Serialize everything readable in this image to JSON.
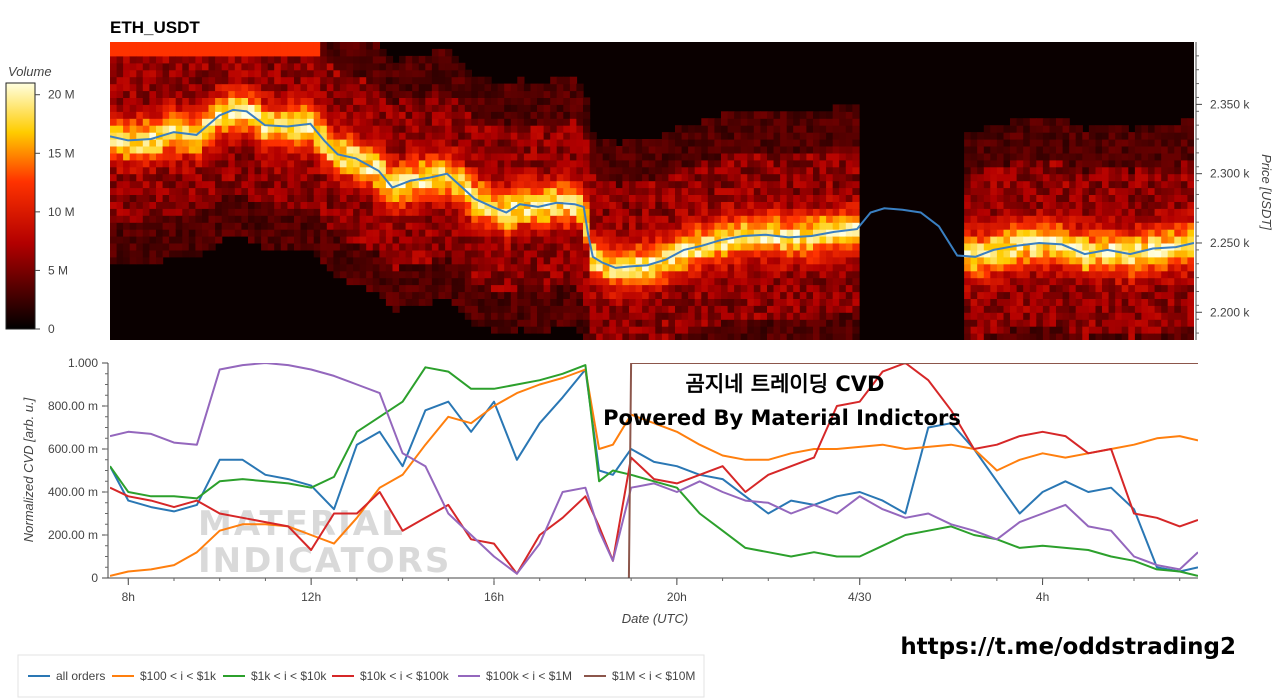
{
  "chart_data": [
    {
      "type": "heatmap",
      "title": "ETH_USDT",
      "ylabel": "Price [USDT]",
      "ylim": [
        2180,
        2395
      ],
      "yticks": [
        {
          "value": 2200,
          "label": "2.200 k"
        },
        {
          "value": 2250,
          "label": "2.250 k"
        },
        {
          "value": 2300,
          "label": "2.300 k"
        },
        {
          "value": 2350,
          "label": "2.350 k"
        }
      ],
      "colorbar": {
        "label": "Volume",
        "range": [
          0,
          21000000
        ],
        "ticks": [
          {
            "value": 0,
            "label": "0"
          },
          {
            "value": 5000000,
            "label": "5 M"
          },
          {
            "value": 10000000,
            "label": "10 M"
          },
          {
            "value": 15000000,
            "label": "15 M"
          },
          {
            "value": 20000000,
            "label": "20 M"
          }
        ]
      },
      "price_line": {
        "color": "#3a7fc1",
        "x": [
          7.6,
          8.0,
          8.5,
          9.0,
          9.5,
          10.0,
          10.3,
          10.6,
          11.0,
          11.5,
          12.0,
          12.3,
          12.6,
          13.0,
          13.5,
          13.8,
          14.2,
          14.6,
          15.0,
          15.3,
          15.6,
          16.0,
          16.3,
          16.6,
          17.0,
          17.4,
          17.8,
          18.0,
          18.1,
          18.2,
          18.4,
          18.7,
          19.0,
          19.4,
          19.8,
          20.2,
          20.6,
          21.0,
          21.5,
          22.0,
          22.5,
          23.0,
          23.5,
          24.0,
          24.3,
          24.6,
          25.0,
          25.4,
          25.8,
          26.2,
          26.6,
          27.0,
          27.5,
          28.0,
          28.5,
          29.0,
          29.5,
          30.0,
          30.5,
          31.0,
          31.4
        ],
        "y": [
          2327,
          2324,
          2325,
          2330,
          2328,
          2342,
          2346,
          2345,
          2335,
          2334,
          2336,
          2324,
          2314,
          2311,
          2302,
          2290,
          2295,
          2297,
          2300,
          2291,
          2282,
          2276,
          2272,
          2278,
          2276,
          2279,
          2278,
          2276,
          2256,
          2240,
          2236,
          2232,
          2233,
          2234,
          2238,
          2245,
          2248,
          2252,
          2255,
          2256,
          2254,
          2255,
          2258,
          2260,
          2272,
          2275,
          2274,
          2272,
          2262,
          2241,
          2240,
          2245,
          2248,
          2250,
          2249,
          2242,
          2245,
          2242,
          2246,
          2247,
          2250
        ]
      }
    },
    {
      "type": "line",
      "xlabel": "Date (UTC)",
      "ylabel": "Normalized CVD [arb. u.]",
      "xlim": [
        7.6,
        31.4
      ],
      "ylim": [
        0,
        1
      ],
      "xticks": [
        {
          "value": 8,
          "label": "8h"
        },
        {
          "value": 12,
          "label": "12h"
        },
        {
          "value": 16,
          "label": "16h"
        },
        {
          "value": 20,
          "label": "20h"
        },
        {
          "value": 24,
          "label": "4/30"
        },
        {
          "value": 28,
          "label": "4h"
        }
      ],
      "yticks": [
        {
          "value": 0,
          "label": "0"
        },
        {
          "value": 0.2,
          "label": "200.00 m"
        },
        {
          "value": 0.4,
          "label": "400.00 m"
        },
        {
          "value": 0.6,
          "label": "600.00 m"
        },
        {
          "value": 0.8,
          "label": "800.00 m"
        },
        {
          "value": 1.0,
          "label": "1.000"
        }
      ],
      "x": [
        7.6,
        8.0,
        8.5,
        9.0,
        9.5,
        10.0,
        10.5,
        11.0,
        11.5,
        12.0,
        12.5,
        13.0,
        13.5,
        14.0,
        14.5,
        15.0,
        15.5,
        16.0,
        16.5,
        17.0,
        17.5,
        18.0,
        18.3,
        18.6,
        19.0,
        19.5,
        20.0,
        20.5,
        21.0,
        21.5,
        22.0,
        22.5,
        23.0,
        23.5,
        24.0,
        24.5,
        25.0,
        25.5,
        26.0,
        26.5,
        27.0,
        27.5,
        28.0,
        28.5,
        29.0,
        29.5,
        30.0,
        30.5,
        31.0,
        31.4
      ],
      "series": [
        {
          "name": "all orders",
          "color": "#2a77b4",
          "values": [
            0.52,
            0.36,
            0.33,
            0.31,
            0.34,
            0.55,
            0.55,
            0.48,
            0.46,
            0.43,
            0.32,
            0.62,
            0.68,
            0.52,
            0.78,
            0.82,
            0.68,
            0.82,
            0.55,
            0.72,
            0.84,
            0.97,
            0.5,
            0.48,
            0.6,
            0.54,
            0.52,
            0.48,
            0.46,
            0.38,
            0.3,
            0.36,
            0.34,
            0.38,
            0.4,
            0.36,
            0.3,
            0.7,
            0.72,
            0.6,
            0.45,
            0.3,
            0.4,
            0.45,
            0.4,
            0.42,
            0.32,
            0.05,
            0.03,
            0.05
          ]
        },
        {
          "name": "$100 < i < $1k",
          "color": "#ff7f0e",
          "values": [
            0.01,
            0.03,
            0.04,
            0.06,
            0.12,
            0.22,
            0.25,
            0.25,
            0.24,
            0.2,
            0.16,
            0.28,
            0.42,
            0.48,
            0.62,
            0.75,
            0.72,
            0.8,
            0.86,
            0.9,
            0.93,
            0.97,
            0.6,
            0.62,
            0.76,
            0.72,
            0.68,
            0.62,
            0.57,
            0.55,
            0.55,
            0.58,
            0.6,
            0.6,
            0.61,
            0.62,
            0.6,
            0.61,
            0.62,
            0.6,
            0.5,
            0.55,
            0.58,
            0.56,
            0.58,
            0.6,
            0.62,
            0.65,
            0.66,
            0.64
          ]
        },
        {
          "name": "$1k < i < $10k",
          "color": "#2ca02c",
          "values": [
            0.52,
            0.4,
            0.38,
            0.38,
            0.37,
            0.45,
            0.46,
            0.45,
            0.44,
            0.42,
            0.47,
            0.68,
            0.75,
            0.82,
            0.98,
            0.96,
            0.88,
            0.88,
            0.9,
            0.92,
            0.95,
            0.99,
            0.45,
            0.5,
            0.48,
            0.45,
            0.42,
            0.3,
            0.22,
            0.14,
            0.12,
            0.1,
            0.12,
            0.1,
            0.1,
            0.15,
            0.2,
            0.22,
            0.24,
            0.2,
            0.18,
            0.14,
            0.15,
            0.14,
            0.13,
            0.1,
            0.08,
            0.04,
            0.03,
            0.01
          ]
        },
        {
          "name": "$10k < i < $100k",
          "color": "#d62728",
          "values": [
            0.42,
            0.38,
            0.36,
            0.33,
            0.36,
            0.3,
            0.28,
            0.26,
            0.24,
            0.13,
            0.3,
            0.3,
            0.4,
            0.22,
            0.28,
            0.34,
            0.18,
            0.16,
            0.02,
            0.2,
            0.28,
            0.38,
            0.24,
            0.08,
            0.56,
            0.46,
            0.44,
            0.48,
            0.52,
            0.4,
            0.48,
            0.52,
            0.56,
            0.8,
            0.82,
            0.96,
            1.0,
            0.92,
            0.78,
            0.6,
            0.62,
            0.66,
            0.68,
            0.66,
            0.58,
            0.6,
            0.3,
            0.28,
            0.24,
            0.27
          ]
        },
        {
          "name": "$100k < i < $1M",
          "color": "#9467bd",
          "values": [
            0.66,
            0.68,
            0.67,
            0.63,
            0.62,
            0.97,
            0.99,
            1.0,
            0.99,
            0.97,
            0.94,
            0.9,
            0.86,
            0.58,
            0.52,
            0.3,
            0.2,
            0.1,
            0.02,
            0.16,
            0.4,
            0.42,
            0.22,
            0.08,
            0.42,
            0.44,
            0.4,
            0.45,
            0.4,
            0.36,
            0.35,
            0.3,
            0.34,
            0.3,
            0.38,
            0.32,
            0.28,
            0.3,
            0.25,
            0.22,
            0.18,
            0.26,
            0.3,
            0.34,
            0.24,
            0.22,
            0.1,
            0.06,
            0.04,
            0.12
          ]
        },
        {
          "name": "$1M < i < $10M",
          "color": "#8c564b",
          "values": [
            null,
            null,
            null,
            null,
            null,
            null,
            null,
            null,
            null,
            null,
            null,
            null,
            null,
            null,
            null,
            null,
            null,
            null,
            null,
            null,
            null,
            null,
            null,
            null,
            1.0,
            1.0,
            1.0,
            1.0,
            1.0,
            1.0,
            1.0,
            1.0,
            1.0,
            1.0,
            1.0,
            1.0,
            1.0,
            1.0,
            1.0,
            1.0,
            1.0,
            1.0,
            1.0,
            1.0,
            1.0,
            1.0,
            1.0,
            1.0,
            1.0,
            1.0
          ]
        }
      ]
    }
  ],
  "overlay": {
    "line1": "곰지네 트레이딩 CVD",
    "line2": "Powered By Material Indictors"
  },
  "watermark": {
    "line1": "MATERIAL",
    "line2": "INDICATORS"
  },
  "link": "https://t.me/oddstrading2"
}
